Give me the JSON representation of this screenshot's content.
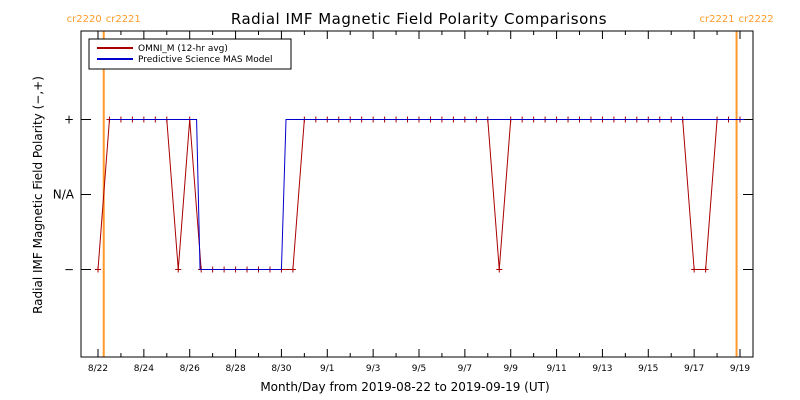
{
  "chart_data": {
    "type": "line",
    "title": "Radial IMF Magnetic Field Polarity Comparisons",
    "xlabel": "Month/Day from 2019-08-22 to 2019-09-19 (UT)",
    "ylabel": "Radial IMF Magnetic Field Polarity (−,+)",
    "x_start_date": "2019-08-22",
    "xlim_days": [
      0,
      28.2
    ],
    "ylim": [
      -2,
      2
    ],
    "x_tick_days": [
      0,
      2,
      4,
      6,
      8,
      10,
      12,
      14,
      16,
      18,
      20,
      22,
      24,
      26,
      28
    ],
    "x_tick_labels": [
      "8/22",
      "8/24",
      "8/26",
      "8/28",
      "8/30",
      "9/1",
      "9/3",
      "9/5",
      "9/7",
      "9/9",
      "9/11",
      "9/13",
      "9/15",
      "9/17",
      "9/19"
    ],
    "y_ticks": [
      1,
      0,
      -1
    ],
    "y_tick_labels": [
      "+",
      "N/A",
      "−"
    ],
    "carrington_lines": [
      {
        "day": 0.25,
        "left_label": "cr2220",
        "right_label": "cr2221"
      },
      {
        "day": 27.85,
        "left_label": "cr2221",
        "right_label": "cr2222"
      }
    ],
    "legend_position": "top-left",
    "series": [
      {
        "name": "OMNI_M (12-hr avg)",
        "color": "#aa0000",
        "marker": "+",
        "x": [
          0.0,
          0.5,
          1.0,
          1.5,
          2.0,
          2.5,
          3.0,
          3.5,
          4.0,
          4.5,
          5.0,
          5.5,
          6.0,
          6.5,
          7.0,
          7.5,
          8.0,
          8.5,
          9.0,
          9.5,
          10.0,
          10.5,
          11.0,
          11.5,
          12.0,
          12.5,
          13.0,
          13.5,
          14.0,
          14.5,
          15.0,
          15.5,
          16.0,
          16.5,
          17.0,
          17.5,
          18.0,
          18.5,
          19.0,
          19.5,
          20.0,
          20.5,
          21.0,
          21.5,
          22.0,
          22.5,
          23.0,
          23.5,
          24.0,
          24.5,
          25.0,
          25.5,
          26.0,
          26.5,
          27.0,
          27.5,
          28.0
        ],
        "y": [
          -1,
          1,
          1,
          1,
          1,
          1,
          1,
          -1,
          1,
          -1,
          -1,
          -1,
          -1,
          -1,
          -1,
          -1,
          -1,
          -1,
          1,
          1,
          1,
          1,
          1,
          1,
          1,
          1,
          1,
          1,
          1,
          1,
          1,
          1,
          1,
          1,
          1,
          -1,
          1,
          1,
          1,
          1,
          1,
          1,
          1,
          1,
          1,
          1,
          1,
          1,
          1,
          1,
          1,
          1,
          -1,
          -1,
          1,
          1,
          1
        ]
      },
      {
        "name": "Predictive Science MAS Model",
        "color": "#0000cc",
        "marker": "",
        "x": [
          0.5,
          4.3,
          4.45,
          8.0,
          8.2,
          28.2
        ],
        "y": [
          1,
          1,
          -1,
          -1,
          1,
          1
        ]
      }
    ]
  }
}
